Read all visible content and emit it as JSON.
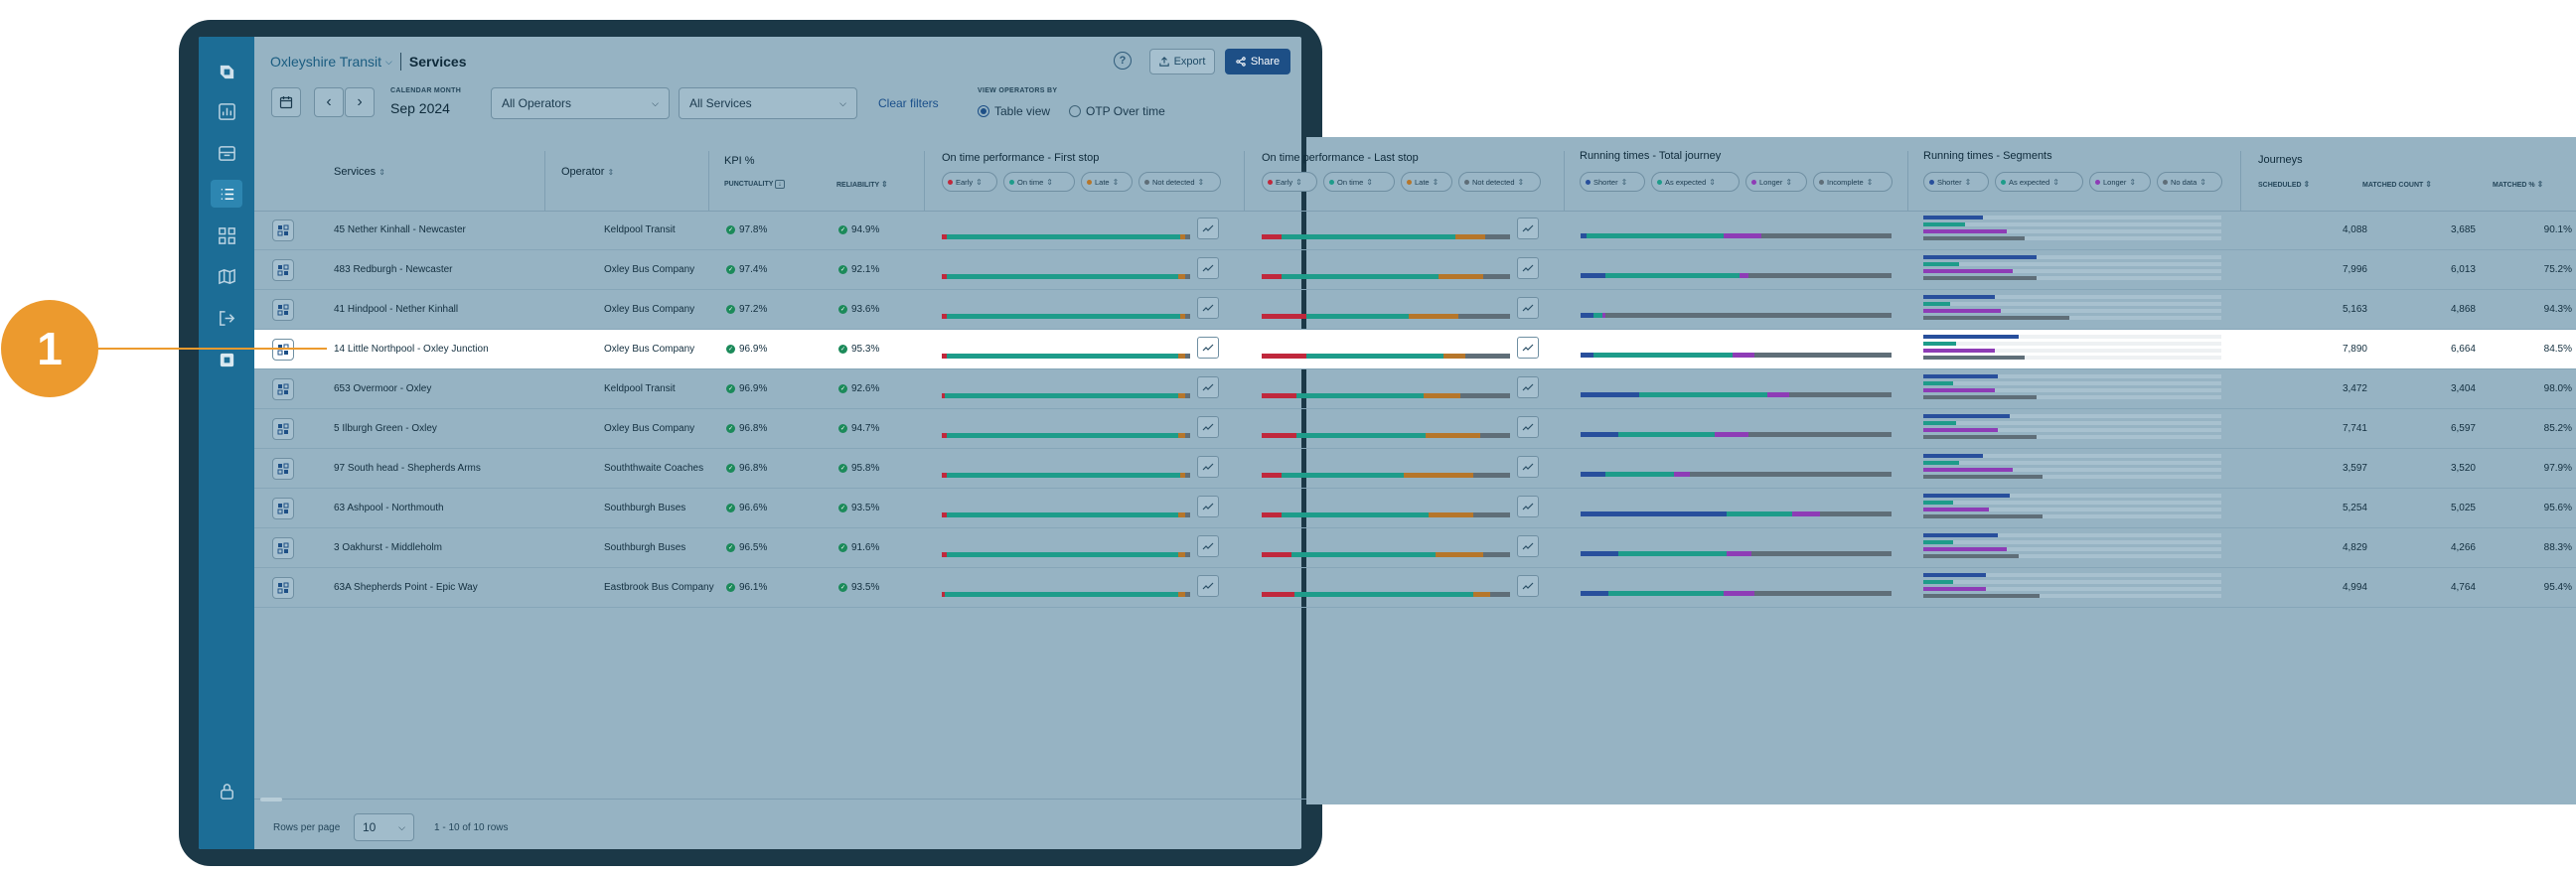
{
  "header": {
    "brand": "Oxleyshire Transit",
    "page": "Services",
    "help": "?",
    "export_label": "Export",
    "share_label": "Share"
  },
  "filters": {
    "calendar_label": "CALENDAR MONTH",
    "month": "Sep 2024",
    "operators": "All Operators",
    "services": "All Services",
    "clear": "Clear filters",
    "view_label": "VIEW OPERATORS BY",
    "view_options": [
      "Table view",
      "OTP Over time"
    ]
  },
  "table": {
    "columns": {
      "services": "Services",
      "operator": "Operator",
      "kpi": "KPI %",
      "punctuality": "PUNCTUALITY",
      "reliability": "RELIABILITY",
      "otp_first": "On time performance - First stop",
      "otp_last": "On time performance - Last stop",
      "rt_total": "Running times - Total journey",
      "rt_segments": "Running times - Segments",
      "journeys": "Journeys",
      "scheduled": "SCHEDULED",
      "matched_count": "MATCHED COUNT",
      "matched_pct": "MATCHED %"
    },
    "otp_chips": [
      "Early",
      "On time",
      "Late",
      "Not detected"
    ],
    "rt_total_chips": [
      "Shorter",
      "As expected",
      "Longer",
      "Incomplete"
    ],
    "rt_seg_chips": [
      "Shorter",
      "As expected",
      "Longer",
      "No data"
    ],
    "rows": [
      {
        "service": "45 Nether Kinhall - Newcaster",
        "operator": "Keldpool Transit",
        "punctuality": "97.8%",
        "reliability": "94.9%",
        "scheduled": "4,088",
        "matched": "3,685",
        "matched_pct": "90.1%"
      },
      {
        "service": "483 Redburgh - Newcaster",
        "operator": "Oxley Bus Company",
        "punctuality": "97.4%",
        "reliability": "92.1%",
        "scheduled": "7,996",
        "matched": "6,013",
        "matched_pct": "75.2%"
      },
      {
        "service": "41 Hindpool - Nether Kinhall",
        "operator": "Oxley Bus Company",
        "punctuality": "97.2%",
        "reliability": "93.6%",
        "scheduled": "5,163",
        "matched": "4,868",
        "matched_pct": "94.3%"
      },
      {
        "service": "14 Little Northpool - Oxley Junction",
        "operator": "Oxley Bus Company",
        "punctuality": "96.9%",
        "reliability": "95.3%",
        "scheduled": "7,890",
        "matched": "6,664",
        "matched_pct": "84.5%"
      },
      {
        "service": "653 Overmoor - Oxley",
        "operator": "Keldpool Transit",
        "punctuality": "96.9%",
        "reliability": "92.6%",
        "scheduled": "3,472",
        "matched": "3,404",
        "matched_pct": "98.0%"
      },
      {
        "service": "5 Ilburgh Green - Oxley",
        "operator": "Oxley Bus Company",
        "punctuality": "96.8%",
        "reliability": "94.7%",
        "scheduled": "7,741",
        "matched": "6,597",
        "matched_pct": "85.2%"
      },
      {
        "service": "97 South head - Shepherds Arms",
        "operator": "Souththwaite Coaches",
        "punctuality": "96.8%",
        "reliability": "95.8%",
        "scheduled": "3,597",
        "matched": "3,520",
        "matched_pct": "97.9%"
      },
      {
        "service": "63 Ashpool - Northmouth",
        "operator": "Southburgh Buses",
        "punctuality": "96.6%",
        "reliability": "93.5%",
        "scheduled": "5,254",
        "matched": "5,025",
        "matched_pct": "95.6%"
      },
      {
        "service": "3 Oakhurst - Middleholm",
        "operator": "Southburgh Buses",
        "punctuality": "96.5%",
        "reliability": "91.6%",
        "scheduled": "4,829",
        "matched": "4,266",
        "matched_pct": "88.3%"
      },
      {
        "service": "63A Shepherds Point - Epic Way",
        "operator": "Eastbrook Bus Company",
        "punctuality": "96.1%",
        "reliability": "93.5%",
        "scheduled": "4,994",
        "matched": "4,764",
        "matched_pct": "95.4%"
      }
    ]
  },
  "footer": {
    "rows_per_page_label": "Rows per page",
    "rows_per_page": "10",
    "range": "1 - 10 of 10 rows"
  },
  "callout": {
    "number": "1"
  },
  "colors": {
    "early": "#c0283c",
    "on_time": "#1e9c8a",
    "late": "#b6762a",
    "not_detected": "#5f6e78",
    "shorter": "#284f9c",
    "as_expected": "#1e9c8a",
    "longer": "#8e3cb6",
    "incomplete": "#5f6e78"
  }
}
